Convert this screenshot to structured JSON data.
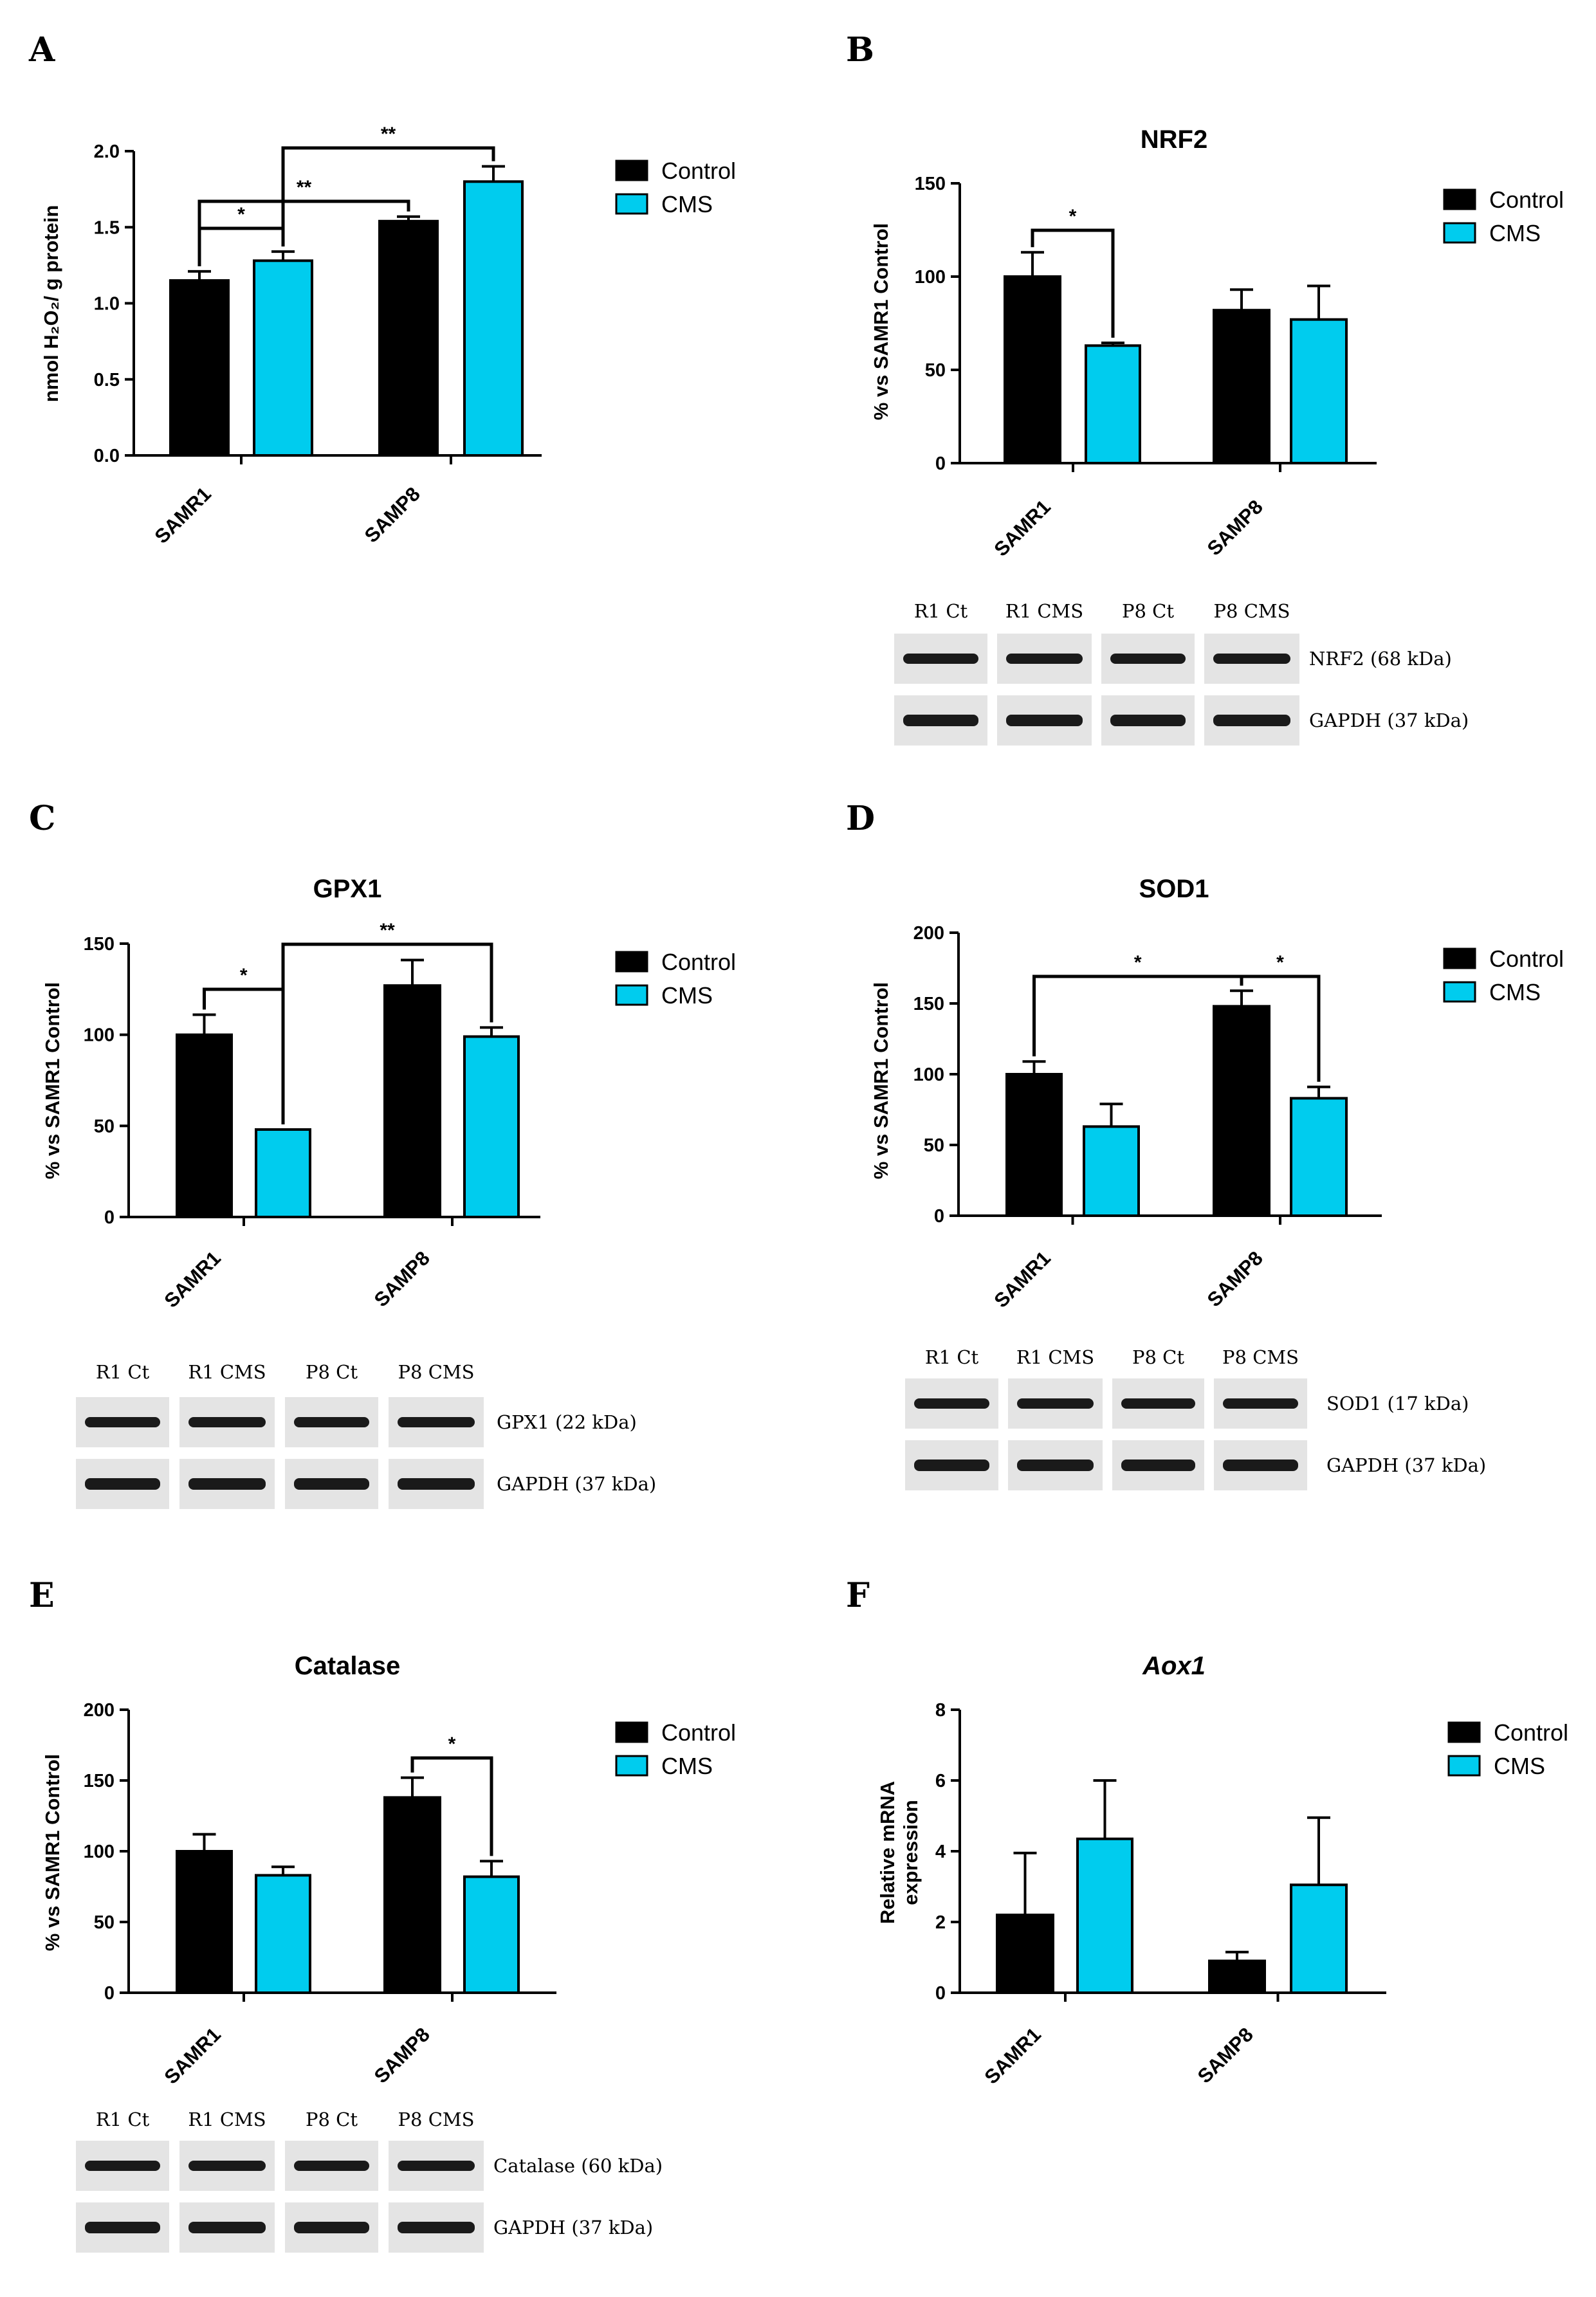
{
  "legend": {
    "control": "Control",
    "cms": "CMS"
  },
  "colors": {
    "control": "#000000",
    "cms": "#00CCEE"
  },
  "chart_data": [
    {
      "panel": "A",
      "type": "bar",
      "title": "",
      "ylabel": "nmol H₂O₂/ g protein",
      "yticks": [
        "0.0",
        "0.5",
        "1.0",
        "1.5",
        "2.0"
      ],
      "ylim": [
        0,
        2.0
      ],
      "categories": [
        "SAMR1",
        "SAMP8"
      ],
      "series": [
        {
          "name": "Control",
          "values": [
            1.15,
            1.54
          ],
          "errors": [
            0.06,
            0.03
          ]
        },
        {
          "name": "CMS",
          "values": [
            1.28,
            1.8
          ],
          "errors": [
            0.06,
            0.1
          ]
        }
      ],
      "significance": [
        {
          "label": "*",
          "from": "SAMR1 Control",
          "to": "SAMR1 CMS"
        },
        {
          "label": "**",
          "from": "SAMR1 Control",
          "to": "SAMP8 Control"
        },
        {
          "label": "**",
          "from": "SAMR1 CMS",
          "to": "SAMP8 CMS"
        }
      ],
      "blot": null
    },
    {
      "panel": "B",
      "type": "bar",
      "title": "NRF2",
      "ylabel": "% vs SAMR1 Control",
      "yticks": [
        "0",
        "50",
        "100",
        "150"
      ],
      "ylim": [
        0,
        150
      ],
      "categories": [
        "SAMR1",
        "SAMP8"
      ],
      "series": [
        {
          "name": "Control",
          "values": [
            100,
            82
          ],
          "errors": [
            13,
            11
          ]
        },
        {
          "name": "CMS",
          "values": [
            63,
            77
          ],
          "errors": [
            1.5,
            18
          ]
        }
      ],
      "significance": [
        {
          "label": "*",
          "from": "SAMR1 Control",
          "to": "SAMR1 CMS"
        }
      ],
      "blot": {
        "lanes": [
          "R1 Ct",
          "R1 CMS",
          "P8 Ct",
          "P8 CMS"
        ],
        "rows": [
          "NRF2 (68 kDa)",
          "GAPDH (37 kDa)"
        ]
      }
    },
    {
      "panel": "C",
      "type": "bar",
      "title": "GPX1",
      "ylabel": "% vs SAMR1 Control",
      "yticks": [
        "0",
        "50",
        "100",
        "150"
      ],
      "ylim": [
        0,
        150
      ],
      "categories": [
        "SAMR1",
        "SAMP8"
      ],
      "series": [
        {
          "name": "Control",
          "values": [
            100,
            127
          ],
          "errors": [
            11,
            14
          ]
        },
        {
          "name": "CMS",
          "values": [
            48,
            99
          ],
          "errors": [
            0,
            5
          ]
        }
      ],
      "significance": [
        {
          "label": "*",
          "from": "SAMR1 Control",
          "to": "SAMR1 CMS"
        },
        {
          "label": "**",
          "from": "SAMR1 CMS",
          "to": "SAMP8 CMS"
        }
      ],
      "blot": {
        "lanes": [
          "R1 Ct",
          "R1 CMS",
          "P8 Ct",
          "P8 CMS"
        ],
        "rows": [
          "GPX1 (22 kDa)",
          "GAPDH (37 kDa)"
        ]
      }
    },
    {
      "panel": "D",
      "type": "bar",
      "title": "SOD1",
      "ylabel": "% vs SAMR1 Control",
      "yticks": [
        "0",
        "50",
        "100",
        "150",
        "200"
      ],
      "ylim": [
        0,
        200
      ],
      "categories": [
        "SAMR1",
        "SAMP8"
      ],
      "series": [
        {
          "name": "Control",
          "values": [
            100,
            148
          ],
          "errors": [
            9,
            11
          ]
        },
        {
          "name": "CMS",
          "values": [
            63,
            83
          ],
          "errors": [
            16,
            8
          ]
        }
      ],
      "significance": [
        {
          "label": "*",
          "from": "SAMR1 Control",
          "to": "SAMP8 Control"
        },
        {
          "label": "*",
          "from": "SAMP8 Control",
          "to": "SAMP8 CMS"
        }
      ],
      "blot": {
        "lanes": [
          "R1 Ct",
          "R1 CMS",
          "P8 Ct",
          "P8 CMS"
        ],
        "rows": [
          "SOD1 (17 kDa)",
          "GAPDH (37 kDa)"
        ]
      }
    },
    {
      "panel": "E",
      "type": "bar",
      "title": "Catalase",
      "ylabel": "% vs SAMR1 Control",
      "yticks": [
        "0",
        "50",
        "100",
        "150",
        "200"
      ],
      "ylim": [
        0,
        200
      ],
      "categories": [
        "SAMR1",
        "SAMP8"
      ],
      "series": [
        {
          "name": "Control",
          "values": [
            100,
            138
          ],
          "errors": [
            12,
            14
          ]
        },
        {
          "name": "CMS",
          "values": [
            83,
            82
          ],
          "errors": [
            6,
            11
          ]
        }
      ],
      "significance": [
        {
          "label": "*",
          "from": "SAMP8 Control",
          "to": "SAMP8 CMS"
        }
      ],
      "blot": {
        "lanes": [
          "R1 Ct",
          "R1 CMS",
          "P8 Ct",
          "P8 CMS"
        ],
        "rows": [
          "Catalase (60 kDa)",
          "GAPDH (37 kDa)"
        ]
      }
    },
    {
      "panel": "F",
      "type": "bar",
      "title": "Aox1",
      "title_italic": true,
      "ylabel": "Relative mRNA expression",
      "ylabel_lines": [
        "Relative mRNA",
        "expression"
      ],
      "yticks": [
        "0",
        "2",
        "4",
        "6",
        "8"
      ],
      "ylim": [
        0,
        8
      ],
      "categories": [
        "SAMR1",
        "SAMP8"
      ],
      "series": [
        {
          "name": "Control",
          "values": [
            2.2,
            0.9
          ],
          "errors": [
            1.75,
            0.25
          ]
        },
        {
          "name": "CMS",
          "values": [
            4.35,
            3.05
          ],
          "errors": [
            1.65,
            1.9
          ]
        }
      ],
      "significance": [],
      "blot": null
    }
  ]
}
